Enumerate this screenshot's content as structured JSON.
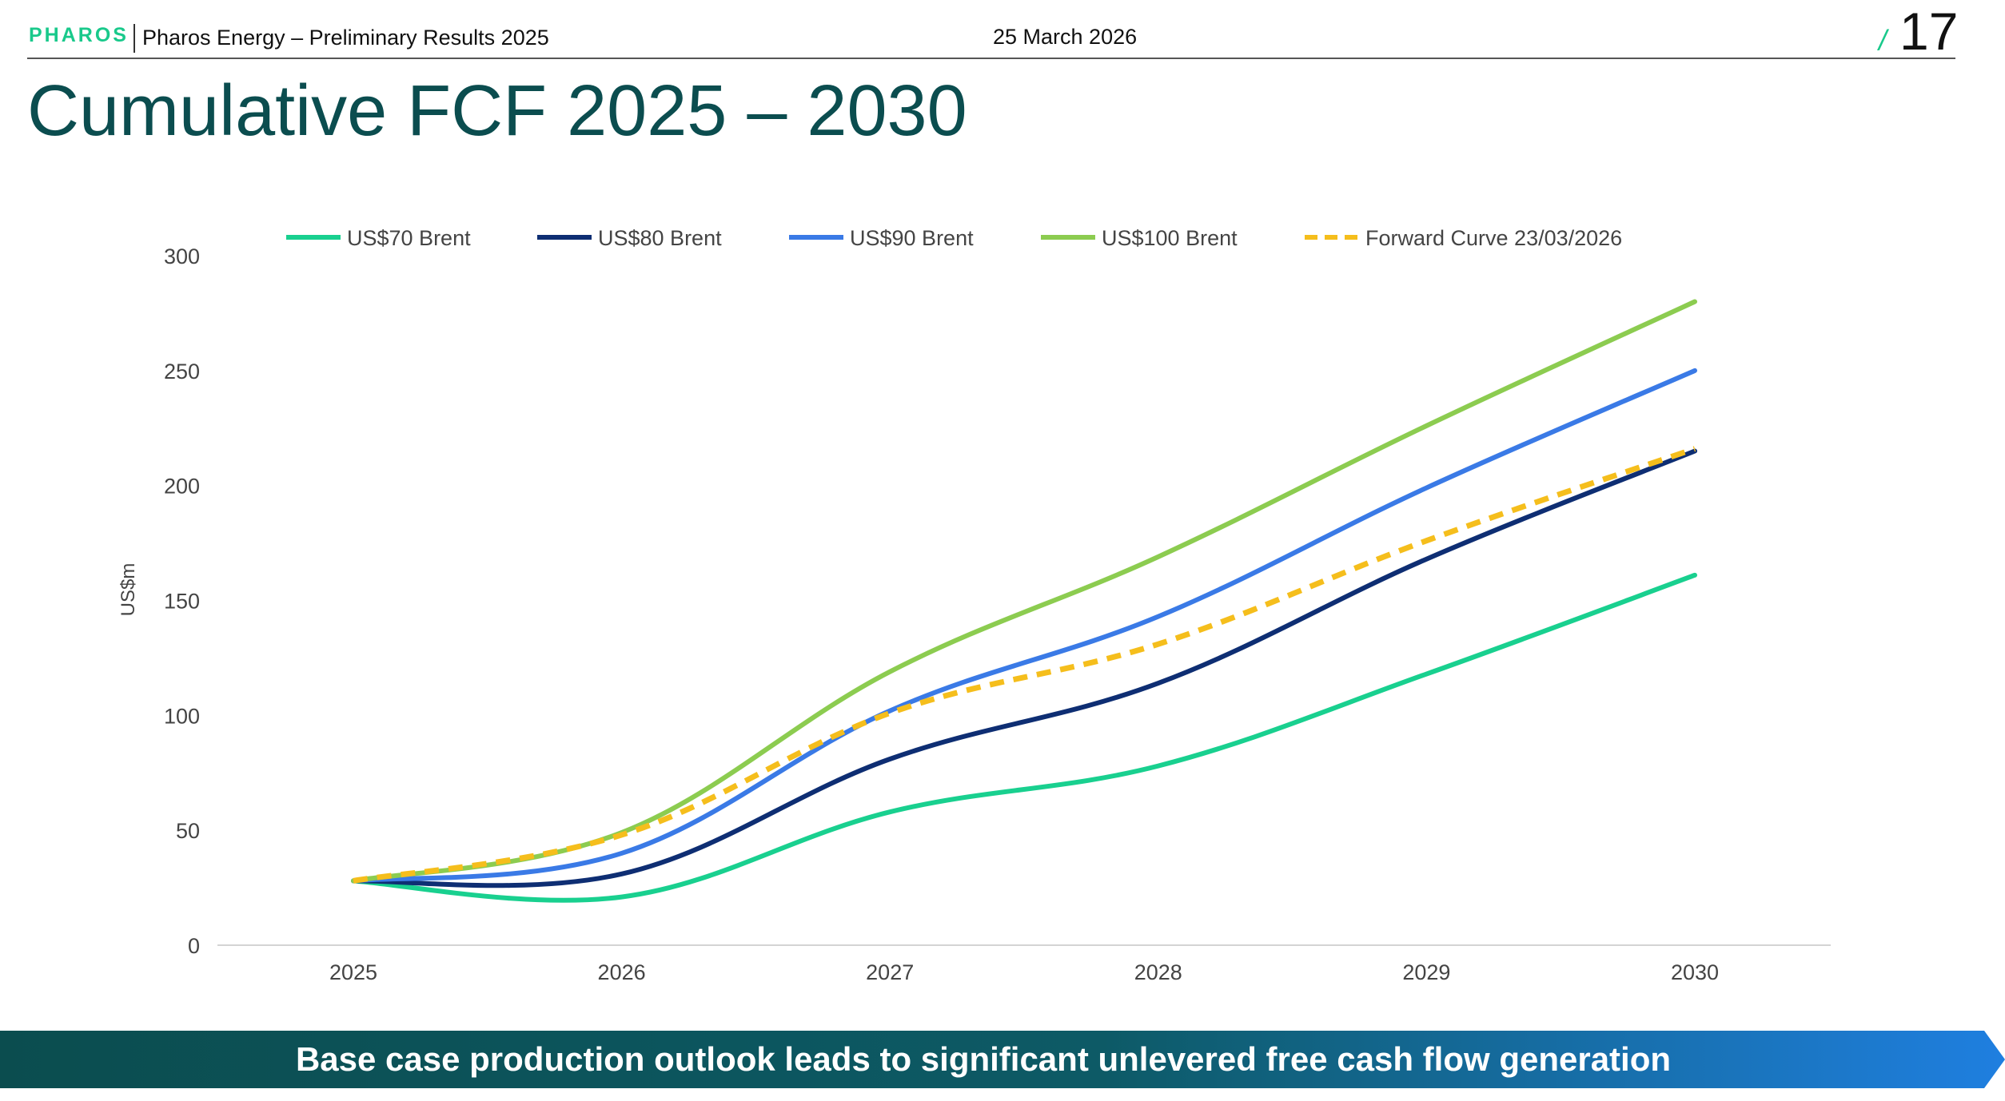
{
  "header": {
    "brand": "PHAROS",
    "title": "Pharos Energy – Preliminary Results 2025",
    "date": "25 March 2026",
    "page_slash": "/",
    "page_number": "17"
  },
  "slide": {
    "title": "Cumulative FCF 2025 – 2030"
  },
  "footer": {
    "banner_text": "Base case production outlook leads to significant unlevered free cash flow generation"
  },
  "colors": {
    "brand_green": "#19c98b",
    "title_teal": "#0b4d4f",
    "banner_start": "#0b4d4f",
    "banner_end": "#1f7fe0"
  },
  "chart_data": {
    "type": "line",
    "title": "",
    "xlabel": "",
    "ylabel": "US$m",
    "x": [
      "2025",
      "2026",
      "2027",
      "2028",
      "2029",
      "2030"
    ],
    "ylim": [
      0,
      300
    ],
    "yticks": [
      0,
      50,
      100,
      150,
      200,
      250,
      300
    ],
    "legend_position": "top",
    "series": [
      {
        "name": "US$70 Brent",
        "color": "#19d08f",
        "dashed": false,
        "values": [
          28,
          21,
          58,
          78,
          118,
          161
        ]
      },
      {
        "name": "US$80 Brent",
        "color": "#0e2e73",
        "dashed": false,
        "values": [
          28,
          31,
          81,
          114,
          168,
          215
        ]
      },
      {
        "name": "US$90 Brent",
        "color": "#3a7ae6",
        "dashed": false,
        "values": [
          28,
          40,
          102,
          143,
          199,
          250
        ]
      },
      {
        "name": "US$100 Brent",
        "color": "#8ccc50",
        "dashed": false,
        "values": [
          28,
          49,
          119,
          169,
          226,
          280
        ]
      },
      {
        "name": "Forward Curve 23/03/2026",
        "color": "#f5be1c",
        "dashed": true,
        "values": [
          28,
          48,
          101,
          131,
          176,
          216
        ]
      }
    ]
  }
}
